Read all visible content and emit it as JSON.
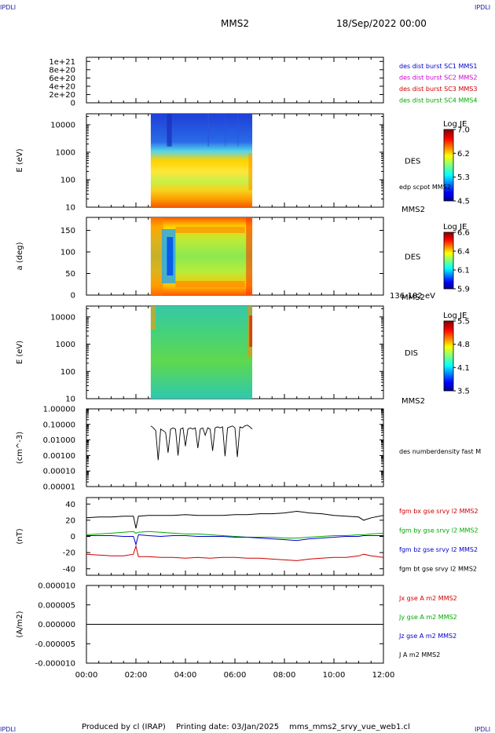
{
  "corner_label": "IPDLI",
  "header": {
    "spacecraft": "MMS2",
    "datetime": "18/Sep/2022 00:00"
  },
  "footer": {
    "produced_by": "Produced by cl (IRAP)",
    "printing_date": "Printing date: 03/Jan/2025",
    "filename": "mms_mms2_srvy_vue_web1.cl"
  },
  "colors": {
    "c1": "#0000cc",
    "c2": "#cc00cc",
    "c3": "#cc0000",
    "c4": "#00aa00",
    "bt": "#000000"
  },
  "chart_data": [
    {
      "type": "line",
      "ylabel": "",
      "ytick_labels": [
        "1e+21",
        "8e+20",
        "6e+20",
        "4e+20",
        "2e+20",
        "0"
      ],
      "ylim": [
        0,
        1.1e+21
      ],
      "legend": [
        {
          "text": "des dist burst SC1 MMS1",
          "color": "#0000cc"
        },
        {
          "text": "des dist burst SC2 MMS2",
          "color": "#cc00cc"
        },
        {
          "text": "des dist burst SC3 MMS3",
          "color": "#cc0000"
        },
        {
          "text": "des dist burst SC4 MMS4",
          "color": "#00aa00"
        }
      ],
      "series": [
        {
          "x": [
            0,
            12
          ],
          "values": [
            0,
            0
          ]
        }
      ]
    },
    {
      "type": "heatmap",
      "ylabel": "E (eV)",
      "yscale": "log",
      "ylim": [
        10,
        25000
      ],
      "ytick_labels": [
        "10000",
        "1000",
        "100",
        "10"
      ],
      "data_interval_hours": [
        2.6,
        6.7
      ],
      "side_label": "DES",
      "sub_label": "edp scpot MMS2",
      "spacecraft_label": "MMS2",
      "colorbar": {
        "title": "Log JE",
        "range": [
          4.5,
          7.0
        ],
        "ticks": [
          "7.0",
          "6.2",
          "5.3",
          "4.5"
        ]
      }
    },
    {
      "type": "heatmap",
      "ylabel": "a (deg)",
      "ylim": [
        0,
        180
      ],
      "ytick_labels": [
        "150",
        "100",
        "50",
        "0"
      ],
      "data_interval_hours": [
        2.6,
        6.7
      ],
      "side_label": "DES",
      "spacecraft_label": "MMS2",
      "energy_label": "136-182 eV",
      "colorbar": {
        "title": "Log JE",
        "range": [
          5.9,
          6.6
        ],
        "ticks": [
          "6.6",
          "6.4",
          "6.1",
          "5.9"
        ]
      }
    },
    {
      "type": "heatmap",
      "ylabel": "E (eV)",
      "yscale": "log",
      "ylim": [
        10,
        25000
      ],
      "ytick_labels": [
        "10000",
        "1000",
        "100",
        "10"
      ],
      "data_interval_hours": [
        2.6,
        6.7
      ],
      "side_label": "DIS",
      "spacecraft_label": "MMS2",
      "colorbar": {
        "title": "Log JE",
        "range": [
          3.5,
          5.5
        ],
        "ticks": [
          "5.5",
          "4.8",
          "4.1",
          "3.5"
        ]
      }
    },
    {
      "type": "line",
      "ylabel": "(cm^-3)",
      "yscale": "log",
      "ylim": [
        1e-05,
        1.0
      ],
      "ytick_labels": [
        "1.00000",
        "0.10000",
        "0.01000",
        "0.00100",
        "0.00010",
        "0.00001"
      ],
      "legend": [
        {
          "text": "des numberdensity fast M",
          "color": "#000000"
        }
      ],
      "series": [
        {
          "x": [
            2.6,
            2.7,
            2.8,
            2.9,
            3.0,
            3.1,
            3.2,
            3.3,
            3.4,
            3.5,
            3.6,
            3.7,
            3.8,
            3.9,
            4.0,
            4.1,
            4.2,
            4.3,
            4.4,
            4.5,
            4.6,
            4.7,
            4.8,
            4.9,
            5.0,
            5.1,
            5.2,
            5.3,
            5.4,
            5.5,
            5.6,
            5.7,
            5.8,
            5.9,
            6.0,
            6.1,
            6.2,
            6.3,
            6.4,
            6.5,
            6.6,
            6.7
          ],
          "values": [
            0.08,
            0.06,
            0.04,
            0.0005,
            0.05,
            0.04,
            0.03,
            0.0015,
            0.05,
            0.06,
            0.05,
            0.001,
            0.05,
            0.06,
            0.004,
            0.05,
            0.06,
            0.05,
            0.06,
            0.003,
            0.05,
            0.06,
            0.02,
            0.06,
            0.05,
            0.002,
            0.06,
            0.07,
            0.06,
            0.07,
            0.0009,
            0.06,
            0.07,
            0.08,
            0.06,
            0.0008,
            0.07,
            0.06,
            0.08,
            0.09,
            0.07,
            0.05
          ]
        }
      ]
    },
    {
      "type": "line",
      "ylabel": "(nT)",
      "ylim": [
        -48,
        48
      ],
      "ytick_labels": [
        "40",
        "20",
        "0",
        "-20",
        "-40"
      ],
      "ytick_values": [
        40,
        20,
        0,
        -20,
        -40
      ],
      "x": [
        0,
        0.5,
        1,
        1.5,
        1.9,
        2.0,
        2.1,
        2.5,
        3,
        3.5,
        4,
        4.5,
        5,
        5.5,
        6,
        6.5,
        7,
        7.5,
        8,
        8.5,
        9,
        9.5,
        10,
        10.5,
        11,
        11.2,
        11.5,
        12
      ],
      "series": [
        {
          "name": "fgm bx gse srvy l2 MMS2",
          "color": "#cc0000",
          "values": [
            -22,
            -23,
            -24,
            -24,
            -22,
            -12,
            -25,
            -25,
            -26,
            -26,
            -27,
            -26,
            -27,
            -26,
            -26,
            -27,
            -27,
            -28,
            -29,
            -30,
            -28,
            -27,
            -26,
            -26,
            -24,
            -22,
            -24,
            -26
          ]
        },
        {
          "name": "fgm by gse srvy l2 MMS2",
          "color": "#00aa00",
          "values": [
            2,
            3,
            4,
            5,
            6,
            4,
            5,
            6,
            5,
            4,
            3,
            3,
            2,
            1,
            0,
            -1,
            -1,
            -1,
            -2,
            -2,
            -1,
            0,
            1,
            1,
            2,
            2,
            3,
            4
          ]
        },
        {
          "name": "fgm bz gse srvy l2 MMS2",
          "color": "#0000cc",
          "values": [
            1,
            1,
            1,
            0,
            0,
            -10,
            2,
            1,
            0,
            1,
            1,
            0,
            0,
            0,
            -1,
            -1,
            -2,
            -3,
            -4,
            -5,
            -3,
            -2,
            -1,
            0,
            0,
            1,
            1,
            1
          ]
        },
        {
          "name": "fgm bt gse srvy l2 MMS2",
          "color": "#000000",
          "values": [
            23,
            24,
            24,
            25,
            25,
            10,
            25,
            26,
            26,
            26,
            27,
            26,
            26,
            26,
            27,
            27,
            28,
            28,
            29,
            31,
            29,
            28,
            26,
            25,
            24,
            20,
            23,
            26
          ]
        }
      ]
    },
    {
      "type": "line",
      "ylabel": "(A/m2)",
      "ylim": [
        -1e-05,
        1e-05
      ],
      "ytick_labels": [
        "0.000010",
        "0.000005",
        "0.000000",
        "-0.000005",
        "-0.000010"
      ],
      "ytick_values": [
        1e-05,
        5e-06,
        0,
        -5e-06,
        -1e-05
      ],
      "legend": [
        {
          "text": "Jx gse A m2 MMS2",
          "color": "#cc0000"
        },
        {
          "text": "Jy gse A m2 MMS2",
          "color": "#00aa00"
        },
        {
          "text": "Jz gse A m2 MMS2",
          "color": "#0000cc"
        },
        {
          "text": "J A m2 MMS2",
          "color": "#000000"
        }
      ],
      "series": [
        {
          "x": [
            0,
            12
          ],
          "values": [
            0,
            0
          ]
        }
      ]
    }
  ],
  "x_axis": {
    "range_hours": [
      0,
      12
    ],
    "tick_labels": [
      "00:00",
      "02:00",
      "04:00",
      "06:00",
      "08:00",
      "10:00",
      "12:00"
    ],
    "tick_values": [
      0,
      2,
      4,
      6,
      8,
      10,
      12
    ]
  }
}
